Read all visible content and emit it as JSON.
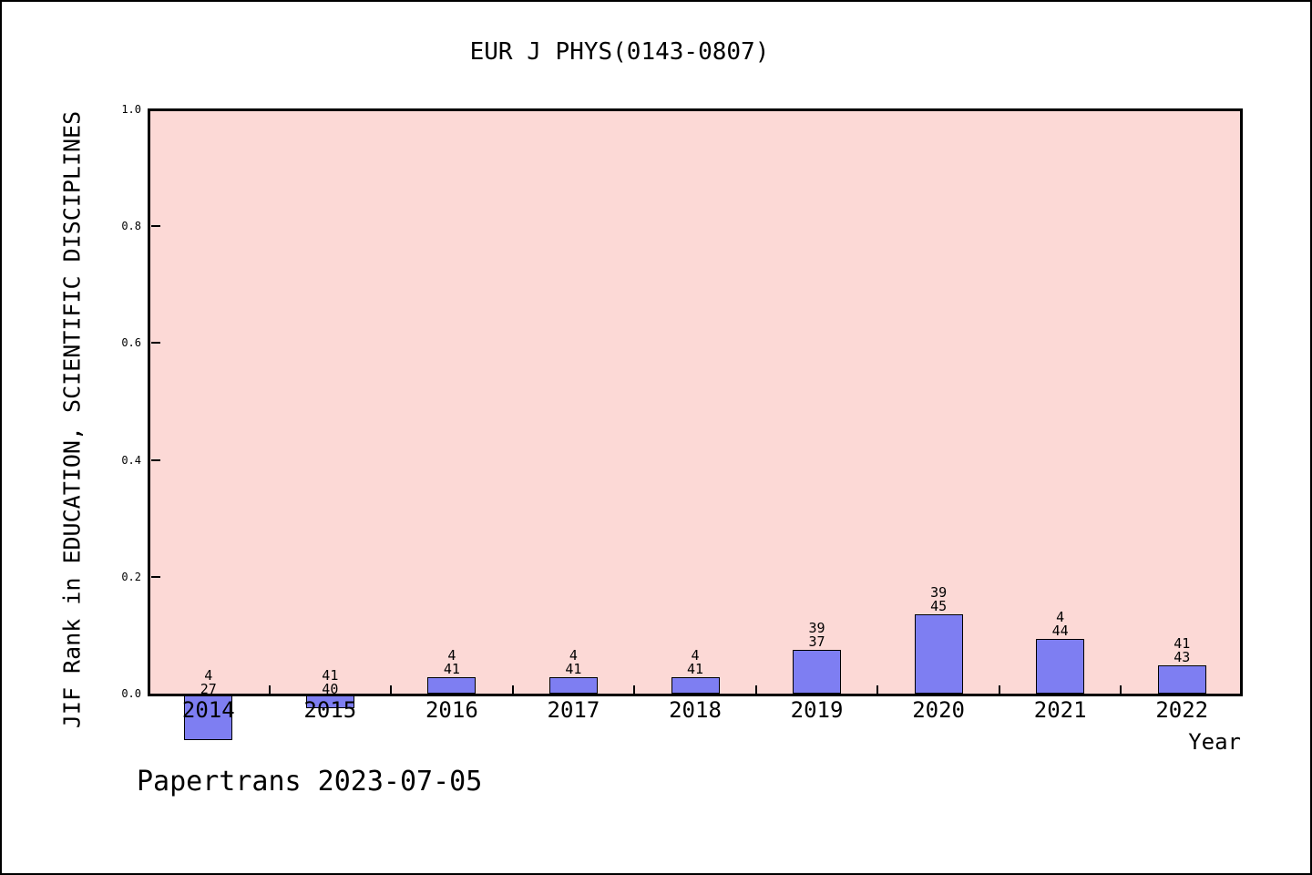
{
  "title": "EUR J PHYS(0143-0807)",
  "footer": "Papertrans 2023-07-05",
  "chart_data": {
    "type": "bar",
    "title": "EUR J PHYS(0143-0807)",
    "xlabel": "Year",
    "ylabel": "JIF Rank in EDUCATION, SCIENTIFIC DISCIPLINES",
    "categories": [
      "2014",
      "2015",
      "2016",
      "2017",
      "2018",
      "2019",
      "2020",
      "2021",
      "2022"
    ],
    "values": [
      -0.08,
      -0.025,
      0.028,
      0.028,
      0.028,
      0.075,
      0.135,
      0.093,
      0.048
    ],
    "bar_labels": [
      [
        "4",
        "27"
      ],
      [
        "41",
        "40"
      ],
      [
        "4",
        "41"
      ],
      [
        "4",
        "41"
      ],
      [
        "4",
        "41"
      ],
      [
        "39",
        "37"
      ],
      [
        "39",
        "45"
      ],
      [
        "4",
        "44"
      ],
      [
        "41",
        "43"
      ]
    ],
    "ylim": [
      0.0,
      1.0
    ],
    "yticks": [
      "0.0",
      "0.2",
      "0.4",
      "0.6",
      "0.8",
      "1.0"
    ],
    "grid": false,
    "legend": null,
    "colors": {
      "bar_fill": "#7e7ef2",
      "bar_edge": "#000000",
      "plot_background": "#fcd9d6",
      "frame": "#000000",
      "text": "#000000"
    }
  }
}
